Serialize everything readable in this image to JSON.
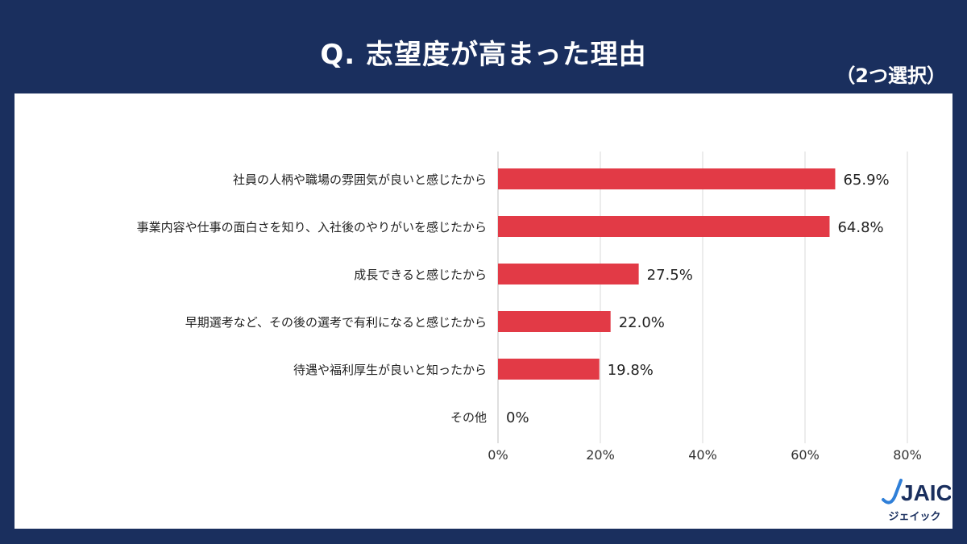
{
  "header": {
    "title": "Q. 志望度が高まった理由",
    "subtitle": "（2つ選択）"
  },
  "logo": {
    "text": "JAIC",
    "sub": "ジェイック"
  },
  "colors": {
    "background": "#1a2f5e",
    "bar": "#e23a46",
    "panel": "#ffffff",
    "grid": "#d9d9d9"
  },
  "chart_data": {
    "type": "bar",
    "orientation": "horizontal",
    "categories": [
      "社員の人柄や職場の雰囲気が良いと感じたから",
      "事業内容や仕事の面白さを知り、入社後のやりがいを感じたから",
      "成長できると感じたから",
      "早期選考など、その後の選考で有利になると感じたから",
      "待遇や福利厚生が良いと知ったから",
      "その他"
    ],
    "values": [
      65.9,
      64.8,
      27.5,
      22.0,
      19.8,
      0
    ],
    "value_labels": [
      "65.9%",
      "64.8%",
      "27.5%",
      "22.0%",
      "19.8%",
      "0%"
    ],
    "xlim": [
      0,
      80
    ],
    "xticks": [
      0,
      20,
      40,
      60,
      80
    ],
    "xtick_labels": [
      "0%",
      "20%",
      "40%",
      "60%",
      "80%"
    ],
    "grid": true
  }
}
